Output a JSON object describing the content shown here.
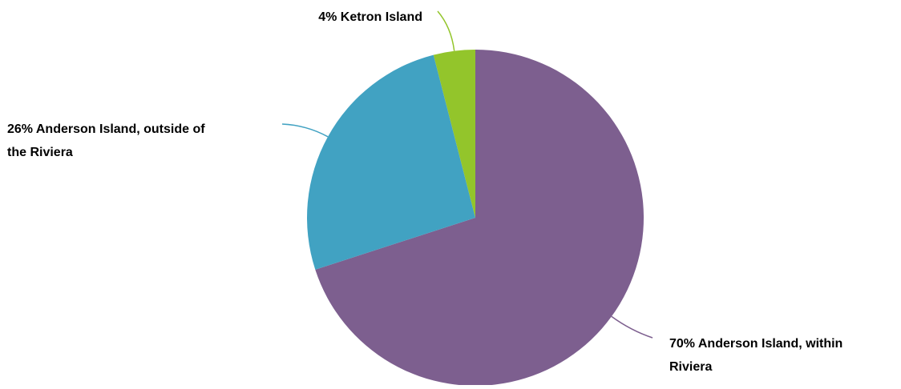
{
  "chart_data": {
    "type": "pie",
    "title": "",
    "start_angle_deg": 0,
    "direction": "clockwise",
    "legend": "none",
    "slices": [
      {
        "label": "Anderson Island, within Riviera",
        "value": 70,
        "percent_label": "70%",
        "label_lines": [
          "70% Anderson Island, within",
          "Riviera"
        ],
        "color": "#7d5f8f"
      },
      {
        "label": "Anderson Island, outside of the Riviera",
        "value": 26,
        "percent_label": "26%",
        "label_lines": [
          "26% Anderson Island, outside of",
          "the Riviera"
        ],
        "color": "#41a2c2"
      },
      {
        "label": "Ketron Island",
        "value": 4,
        "percent_label": "4%",
        "label_lines": [
          "4% Ketron Island"
        ],
        "color": "#93c52b"
      }
    ]
  }
}
